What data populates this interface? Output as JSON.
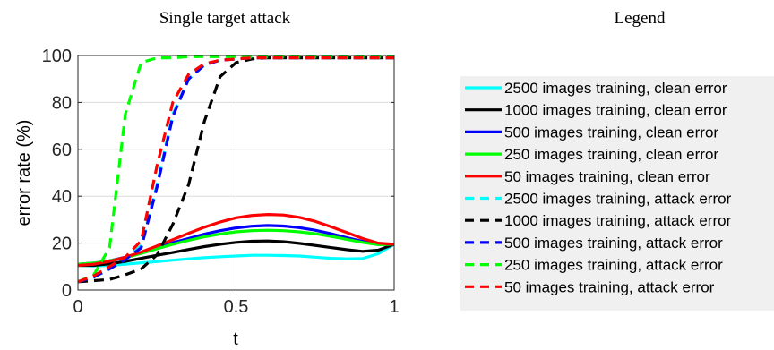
{
  "left_panel": {
    "title": "Single target attack",
    "xlabel": "t",
    "ylabel": "error rate (%)"
  },
  "right_panel": {
    "title": "Legend"
  },
  "chart_data": {
    "type": "line",
    "title": "Single target attack",
    "xlabel": "t",
    "ylabel": "error rate (%)",
    "xlim": [
      0,
      1
    ],
    "ylim": [
      0,
      100
    ],
    "xticks": [
      "0",
      "0.5",
      "1"
    ],
    "yticks": [
      "0",
      "20",
      "40",
      "60",
      "80",
      "100"
    ],
    "grid": true,
    "legend_placement": "separate-panel-right",
    "x": [
      0,
      0.05,
      0.1,
      0.15,
      0.2,
      0.25,
      0.3,
      0.35,
      0.4,
      0.45,
      0.5,
      0.55,
      0.6,
      0.65,
      0.7,
      0.75,
      0.8,
      0.85,
      0.9,
      0.95,
      1.0
    ],
    "series": [
      {
        "name": "2500 images training, clean error",
        "color": "#00ffff",
        "dash": "solid",
        "values": [
          10.5,
          10.3,
          10.5,
          11.0,
          11.6,
          12.1,
          12.7,
          13.3,
          13.8,
          14.2,
          14.5,
          14.8,
          14.8,
          14.7,
          14.5,
          14.0,
          13.5,
          13.3,
          13.4,
          15.5,
          19.5
        ]
      },
      {
        "name": "1000 images training, clean error",
        "color": "#000000",
        "dash": "solid",
        "values": [
          10.5,
          10.5,
          11.2,
          12.2,
          13.5,
          14.8,
          16.0,
          17.3,
          18.5,
          19.5,
          20.3,
          20.8,
          20.9,
          20.6,
          19.9,
          19.0,
          18.1,
          17.2,
          16.5,
          17.0,
          19.5
        ]
      },
      {
        "name": "500 images training, clean error",
        "color": "#0000ff",
        "dash": "solid",
        "values": [
          11.0,
          11.5,
          12.5,
          14.0,
          16.0,
          18.2,
          20.2,
          22.0,
          23.8,
          25.3,
          26.5,
          27.2,
          27.5,
          27.3,
          26.6,
          25.5,
          24.0,
          22.3,
          20.8,
          19.6,
          19.5
        ]
      },
      {
        "name": "250 images training, clean error",
        "color": "#00ff00",
        "dash": "solid",
        "values": [
          11.0,
          11.5,
          12.5,
          13.8,
          15.6,
          17.6,
          19.5,
          21.2,
          22.7,
          23.9,
          24.8,
          25.3,
          25.5,
          25.3,
          24.8,
          24.0,
          22.9,
          21.6,
          20.3,
          19.3,
          19.5
        ]
      },
      {
        "name": "50 images training, clean error",
        "color": "#ff0000",
        "dash": "solid",
        "values": [
          10.5,
          11.0,
          12.2,
          14.0,
          16.2,
          18.8,
          21.5,
          24.2,
          26.8,
          29.0,
          30.8,
          31.8,
          32.2,
          32.0,
          31.0,
          29.3,
          27.0,
          24.5,
          22.0,
          20.0,
          19.5
        ]
      },
      {
        "name": "2500 images training, attack error",
        "color": "#00ffff",
        "dash": "dashed",
        "values": [
          3.5,
          5.5,
          9.0,
          13.0,
          19.0,
          45.0,
          75.0,
          90.0,
          96.0,
          98.0,
          98.5,
          99.0,
          99.0,
          99.0,
          99.0,
          99.0,
          99.0,
          99.0,
          99.0,
          99.0,
          99.0
        ]
      },
      {
        "name": "1000 images training, attack error",
        "color": "#000000",
        "dash": "dashed",
        "values": [
          3.5,
          4.0,
          4.5,
          6.5,
          9.0,
          15.0,
          28.0,
          45.0,
          72.0,
          91.0,
          97.0,
          98.5,
          99.0,
          99.0,
          99.0,
          99.0,
          99.0,
          99.0,
          99.0,
          99.0,
          99.0
        ]
      },
      {
        "name": "500 images training, attack error",
        "color": "#0000ff",
        "dash": "dashed",
        "values": [
          3.5,
          5.5,
          9.0,
          13.0,
          18.0,
          44.0,
          74.0,
          90.0,
          96.0,
          98.0,
          98.5,
          99.0,
          99.0,
          99.0,
          99.0,
          99.0,
          99.0,
          99.0,
          99.0,
          99.0,
          99.0
        ]
      },
      {
        "name": "250 images training, attack error",
        "color": "#00ff00",
        "dash": "dashed",
        "values": [
          3.5,
          6.5,
          18.0,
          75.0,
          97.0,
          99.0,
          99.0,
          99.5,
          99.5,
          99.5,
          99.5,
          99.5,
          99.5,
          99.5,
          99.5,
          99.5,
          99.5,
          99.5,
          99.5,
          99.5,
          99.5
        ]
      },
      {
        "name": "50 images training, attack error",
        "color": "#ff0000",
        "dash": "dashed",
        "values": [
          3.5,
          6.0,
          10.0,
          14.0,
          21.0,
          53.0,
          80.0,
          92.0,
          96.5,
          98.0,
          98.5,
          99.0,
          99.0,
          99.0,
          99.0,
          99.0,
          99.0,
          99.0,
          99.0,
          99.0,
          99.0
        ]
      }
    ]
  }
}
